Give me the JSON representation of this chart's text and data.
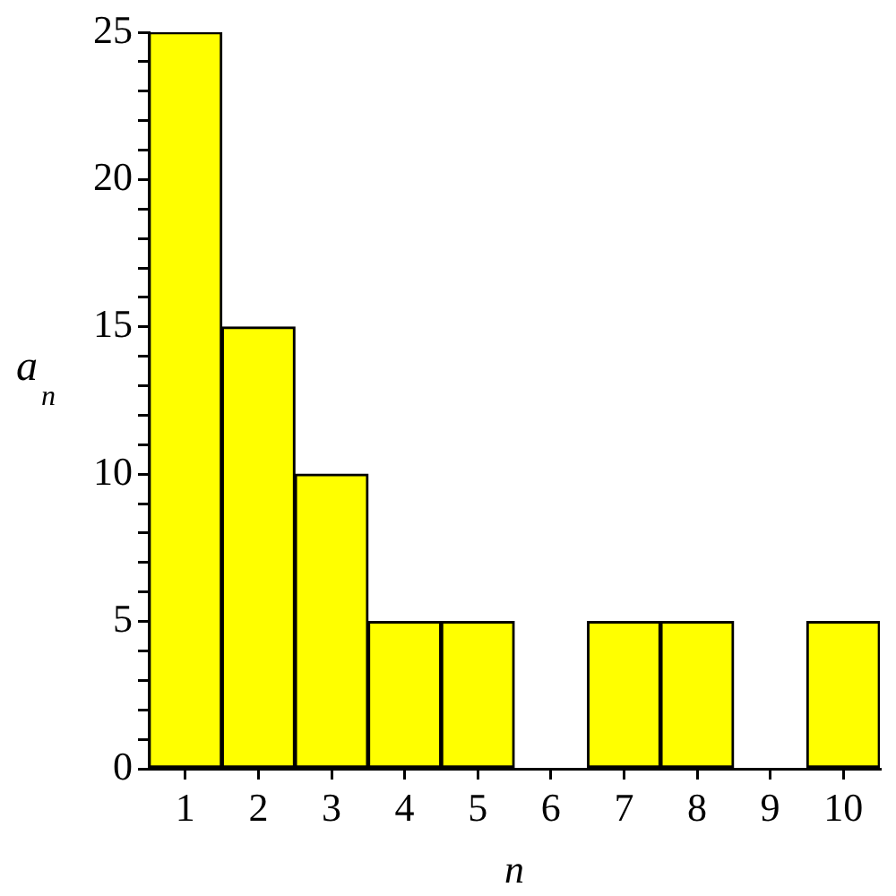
{
  "chart_data": {
    "type": "bar",
    "categories": [
      "1",
      "2",
      "3",
      "4",
      "5",
      "6",
      "7",
      "8",
      "9",
      "10"
    ],
    "values": [
      25,
      15,
      10,
      5,
      5,
      0,
      5,
      5,
      0,
      5
    ],
    "color": "#ffff00",
    "xlabel": "n",
    "ylabel": "a$_{n}$",
    "ylim": [
      0,
      25
    ],
    "yticks": [
      0,
      {
        "value": 1,
        "label": null
      },
      {
        "value": 2,
        "label": null
      },
      {
        "value": 3,
        "label": null
      },
      {
        "value": 4,
        "label": null
      },
      5,
      {
        "value": 6,
        "label": null
      },
      {
        "value": 7,
        "label": null
      },
      {
        "value": 8,
        "label": null
      },
      {
        "value": 9,
        "label": null
      },
      10,
      {
        "value": 11,
        "label": null
      },
      {
        "value": 12,
        "label": null
      },
      {
        "value": 13,
        "label": null
      },
      {
        "value": 14,
        "label": null
      },
      15,
      {
        "value": 16,
        "label": null
      },
      {
        "value": 17,
        "label": null
      },
      {
        "value": 18,
        "label": null
      },
      {
        "value": 19,
        "label": null
      },
      20,
      {
        "value": 21,
        "label": null
      },
      {
        "value": 22,
        "label": null
      },
      {
        "value": 23,
        "label": null
      },
      {
        "value": 24,
        "label": null
      },
      25
    ]
  }
}
